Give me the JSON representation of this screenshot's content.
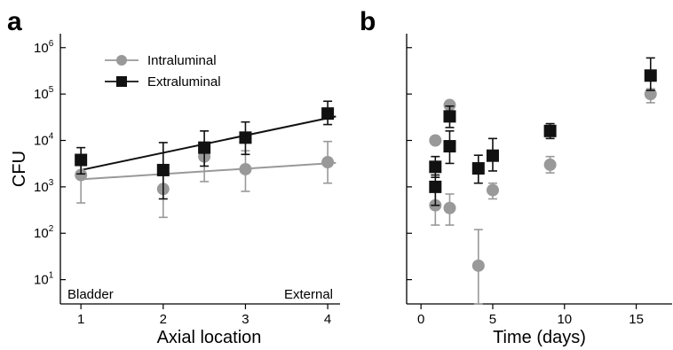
{
  "chart_data": [
    {
      "panel": "a",
      "type": "scatter",
      "xlabel": "Axial location",
      "ylabel": "CFU",
      "yscale": "log",
      "ylim": [
        3,
        2000000
      ],
      "xlim": [
        0.75,
        4.15
      ],
      "xticks": [
        1,
        2,
        3,
        4
      ],
      "yticks": [
        {
          "value": 10,
          "base": "10",
          "exp": "1"
        },
        {
          "value": 100,
          "base": "10",
          "exp": "2"
        },
        {
          "value": 1000,
          "base": "10",
          "exp": "3"
        },
        {
          "value": 10000,
          "base": "10",
          "exp": "4"
        },
        {
          "value": 100000,
          "base": "10",
          "exp": "5"
        },
        {
          "value": 1000000,
          "base": "10",
          "exp": "6"
        }
      ],
      "annotations": {
        "left": "Bladder",
        "right": "External"
      },
      "legend_position": "top-left",
      "series": [
        {
          "name": "Intraluminal",
          "marker": "circle",
          "color": "#999999",
          "points": [
            {
              "x": 1,
              "y": 1800,
              "lo": 450,
              "hi": 4000
            },
            {
              "x": 2,
              "y": 900,
              "lo": 220,
              "hi": 2500
            },
            {
              "x": 2.5,
              "y": 4500,
              "lo": 1300,
              "hi": 5500
            },
            {
              "x": 3,
              "y": 2400,
              "lo": 800,
              "hi": 6000
            },
            {
              "x": 4,
              "y": 3400,
              "lo": 1200,
              "hi": 9500
            }
          ],
          "fit": {
            "x": [
              1,
              4.1
            ],
            "y": [
              1450,
              3300
            ]
          }
        },
        {
          "name": "Extraluminal",
          "marker": "square",
          "color": "#111111",
          "points": [
            {
              "x": 1,
              "y": 3800,
              "lo": 1900,
              "hi": 7000
            },
            {
              "x": 2,
              "y": 2300,
              "lo": 550,
              "hi": 9000
            },
            {
              "x": 2.5,
              "y": 7000,
              "lo": 2800,
              "hi": 16000
            },
            {
              "x": 3,
              "y": 11500,
              "lo": 5000,
              "hi": 25000
            },
            {
              "x": 4,
              "y": 38000,
              "lo": 22000,
              "hi": 70000
            }
          ],
          "fit": {
            "x": [
              1,
              4.1
            ],
            "y": [
              2300,
              33000
            ]
          }
        }
      ]
    },
    {
      "panel": "b",
      "type": "scatter",
      "xlabel": "Time (days)",
      "ylabel": "",
      "yscale": "log",
      "ylim": [
        3,
        2000000
      ],
      "xlim": [
        -1,
        17.5
      ],
      "xticks": [
        0,
        5,
        10,
        15
      ],
      "series": [
        {
          "name": "Intraluminal",
          "marker": "circle",
          "color": "#999999",
          "points": [
            {
              "x": 1,
              "y": 10000
            },
            {
              "x": 1,
              "y": 400,
              "lo": 150,
              "hi": 800
            },
            {
              "x": 2,
              "y": 58000
            },
            {
              "x": 2,
              "y": 350,
              "lo": 150,
              "hi": 700
            },
            {
              "x": 4,
              "y": 20,
              "lo": 3,
              "hi": 120
            },
            {
              "x": 5,
              "y": 850,
              "lo": 550,
              "hi": 1200
            },
            {
              "x": 9,
              "y": 3000,
              "lo": 2000,
              "hi": 4500
            },
            {
              "x": 16,
              "y": 100000,
              "lo": 65000,
              "hi": 130000
            }
          ]
        },
        {
          "name": "Extraluminal",
          "marker": "square",
          "color": "#111111",
          "points": [
            {
              "x": 1,
              "y": 2700,
              "lo": 1600,
              "hi": 4500
            },
            {
              "x": 1,
              "y": 1000,
              "lo": 400,
              "hi": 1800
            },
            {
              "x": 2,
              "y": 33000,
              "lo": 19000,
              "hi": 55000
            },
            {
              "x": 2,
              "y": 7500,
              "lo": 3200,
              "hi": 16000
            },
            {
              "x": 4,
              "y": 2500,
              "lo": 1200,
              "hi": 4800
            },
            {
              "x": 5,
              "y": 4700,
              "lo": 2200,
              "hi": 11000
            },
            {
              "x": 9,
              "y": 16000,
              "lo": 11000,
              "hi": 23000
            },
            {
              "x": 16,
              "y": 250000,
              "lo": 120000,
              "hi": 600000
            }
          ]
        }
      ]
    }
  ],
  "panel_letters": {
    "a": "a",
    "b": "b"
  }
}
